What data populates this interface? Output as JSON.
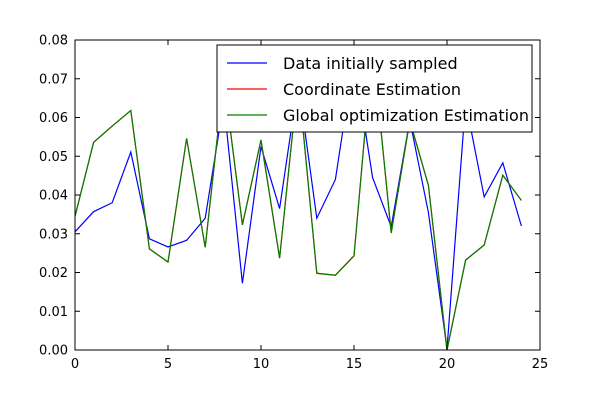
{
  "chart_data": {
    "type": "line",
    "title": "",
    "xlabel": "",
    "ylabel": "",
    "xlim": [
      0,
      25
    ],
    "ylim": [
      0.0,
      0.08
    ],
    "x_ticks": [
      0,
      5,
      10,
      15,
      20,
      25
    ],
    "y_ticks": [
      0.0,
      0.01,
      0.02,
      0.03,
      0.04,
      0.05,
      0.06,
      0.07,
      0.08
    ],
    "x_tick_labels": [
      "0",
      "5",
      "10",
      "15",
      "20",
      "25"
    ],
    "y_tick_labels": [
      "0.00",
      "0.01",
      "0.02",
      "0.03",
      "0.04",
      "0.05",
      "0.06",
      "0.07",
      "0.08"
    ],
    "grid": false,
    "legend_position": "top-right",
    "x": [
      0,
      1,
      2,
      3,
      4,
      5,
      6,
      7,
      8,
      9,
      10,
      11,
      12,
      13,
      14,
      15,
      16,
      17,
      18,
      19,
      20,
      21,
      22,
      23,
      24
    ],
    "series": [
      {
        "name": "Data initially sampled",
        "color": "#0000ff",
        "values": [
          0.0305,
          0.0357,
          0.038,
          0.0511,
          0.0287,
          0.0266,
          0.0283,
          0.034,
          0.064,
          0.0172,
          0.0525,
          0.0365,
          0.0692,
          0.034,
          0.044,
          0.0755,
          0.0445,
          0.0318,
          0.0593,
          0.0355,
          0.0003,
          0.064,
          0.0395,
          0.0483,
          0.032
        ]
      },
      {
        "name": "Coordinate Estimation",
        "color": "#ff0000",
        "values": [
          0.0345,
          0.0536,
          0.0578,
          0.0618,
          0.0261,
          0.0227,
          0.0546,
          0.0265,
          0.07,
          0.0323,
          0.0542,
          0.0237,
          0.07,
          0.0198,
          0.0193,
          0.0243,
          0.0785,
          0.0302,
          0.0592,
          0.0425,
          0.0,
          0.0232,
          0.0271,
          0.0451,
          0.0386
        ]
      },
      {
        "name": "Global optimization Estimation",
        "color": "#008000",
        "values": [
          0.0345,
          0.0536,
          0.0578,
          0.0618,
          0.0261,
          0.0227,
          0.0546,
          0.0265,
          0.07,
          0.0323,
          0.0542,
          0.0237,
          0.07,
          0.0198,
          0.0193,
          0.0243,
          0.0785,
          0.0302,
          0.0592,
          0.0425,
          0.0,
          0.0232,
          0.0271,
          0.0451,
          0.0386
        ]
      }
    ]
  }
}
